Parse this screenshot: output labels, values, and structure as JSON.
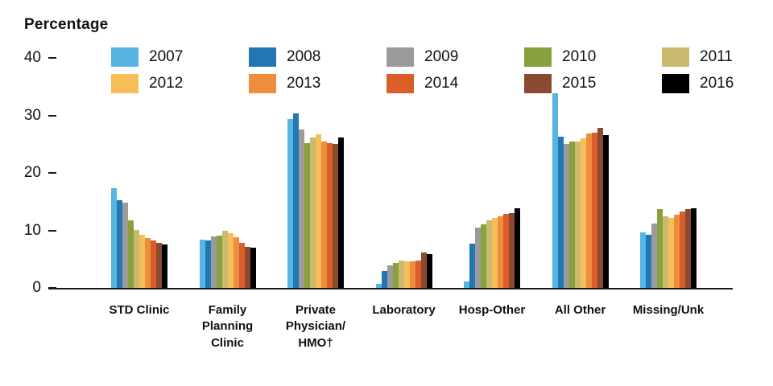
{
  "chart_data": {
    "type": "bar",
    "ylabel": "Percentage",
    "xlabel": "",
    "ylim": [
      0,
      40
    ],
    "yticks": [
      0,
      10,
      20,
      30,
      40
    ],
    "grid": false,
    "legend_position": "top",
    "categories": [
      "STD Clinic",
      "Family Planning Clinic",
      "Private Physician/HMO†",
      "Laboratory",
      "Hosp-Other",
      "All Other",
      "Missing/Unk"
    ],
    "category_label_lines": [
      [
        "STD Clinic"
      ],
      [
        "Family",
        "Planning",
        "Clinic"
      ],
      [
        "Private",
        "Physician/",
        "HMO†"
      ],
      [
        "Laboratory"
      ],
      [
        "Hosp-Other"
      ],
      [
        "All Other"
      ],
      [
        "Missing/Unk"
      ]
    ],
    "series": [
      {
        "name": "2007",
        "color": "#58B4E3",
        "values": [
          17.3,
          8.4,
          29.4,
          0.7,
          1.1,
          33.8,
          9.6
        ]
      },
      {
        "name": "2008",
        "color": "#2077B4",
        "values": [
          15.3,
          8.2,
          30.3,
          3.0,
          7.7,
          26.3,
          9.2
        ]
      },
      {
        "name": "2009",
        "color": "#9B9B9B",
        "values": [
          14.8,
          9.0,
          27.5,
          3.9,
          10.5,
          25.1,
          11.2
        ]
      },
      {
        "name": "2010",
        "color": "#89A13C",
        "values": [
          11.8,
          9.1,
          25.2,
          4.4,
          11.0,
          25.5,
          13.7
        ]
      },
      {
        "name": "2011",
        "color": "#C9BA6E",
        "values": [
          10.0,
          9.9,
          26.1,
          4.7,
          11.8,
          25.5,
          12.4
        ]
      },
      {
        "name": "2012",
        "color": "#F5BE58",
        "values": [
          9.3,
          9.5,
          26.7,
          4.6,
          12.2,
          26.0,
          12.1
        ]
      },
      {
        "name": "2013",
        "color": "#EE8D3E",
        "values": [
          8.7,
          8.8,
          25.5,
          4.6,
          12.5,
          26.8,
          12.7
        ]
      },
      {
        "name": "2014",
        "color": "#DB5E28",
        "values": [
          8.3,
          7.9,
          25.2,
          4.8,
          12.8,
          27.0,
          13.3
        ]
      },
      {
        "name": "2015",
        "color": "#8A4A32",
        "values": [
          7.8,
          7.2,
          25.1,
          6.2,
          13.0,
          27.8,
          13.7
        ]
      },
      {
        "name": "2016",
        "color": "#000000",
        "values": [
          7.5,
          7.0,
          26.1,
          5.9,
          13.9,
          26.6,
          13.9
        ]
      }
    ]
  }
}
